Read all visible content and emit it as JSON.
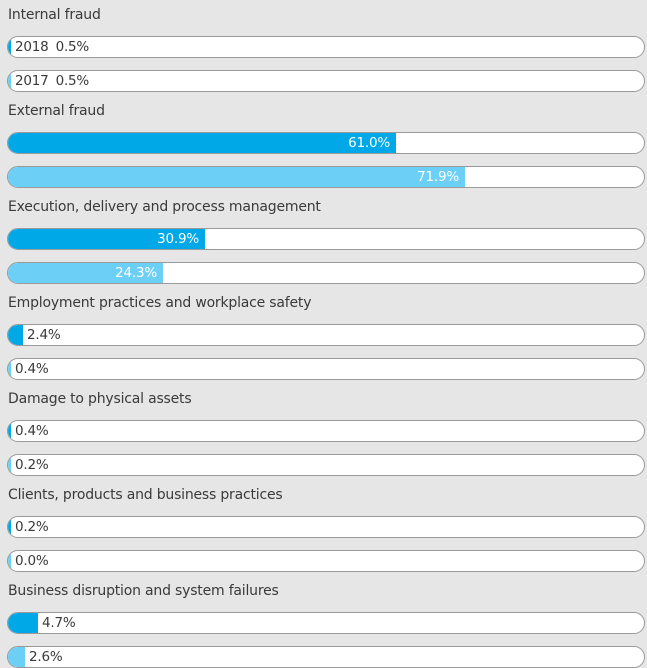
{
  "chart_data": {
    "type": "bar",
    "orientation": "horizontal",
    "xlim": [
      0,
      100
    ],
    "value_suffix": "%",
    "categories": [
      "Internal fraud",
      "External fraud",
      "Execution, delivery and process management",
      "Employment practices and workplace safety",
      "Damage to physical assets",
      "Clients, products and business practices",
      "Business disruption and system failures"
    ],
    "series": [
      {
        "name": "2018",
        "color": "#00a8e8",
        "values": [
          0.5,
          61.0,
          30.9,
          2.4,
          0.4,
          0.2,
          4.7
        ]
      },
      {
        "name": "2017",
        "color": "#6cd0f6",
        "values": [
          0.5,
          71.9,
          24.3,
          0.4,
          0.2,
          0.0,
          2.6
        ]
      }
    ],
    "value_labels": [
      [
        "0.5%",
        "61.0%",
        "30.9%",
        "2.4%",
        "0.4%",
        "0.2%",
        "4.7%"
      ],
      [
        "0.5%",
        "71.9%",
        "24.3%",
        "0.4%",
        "0.2%",
        "0.0%",
        "2.6%"
      ]
    ]
  }
}
